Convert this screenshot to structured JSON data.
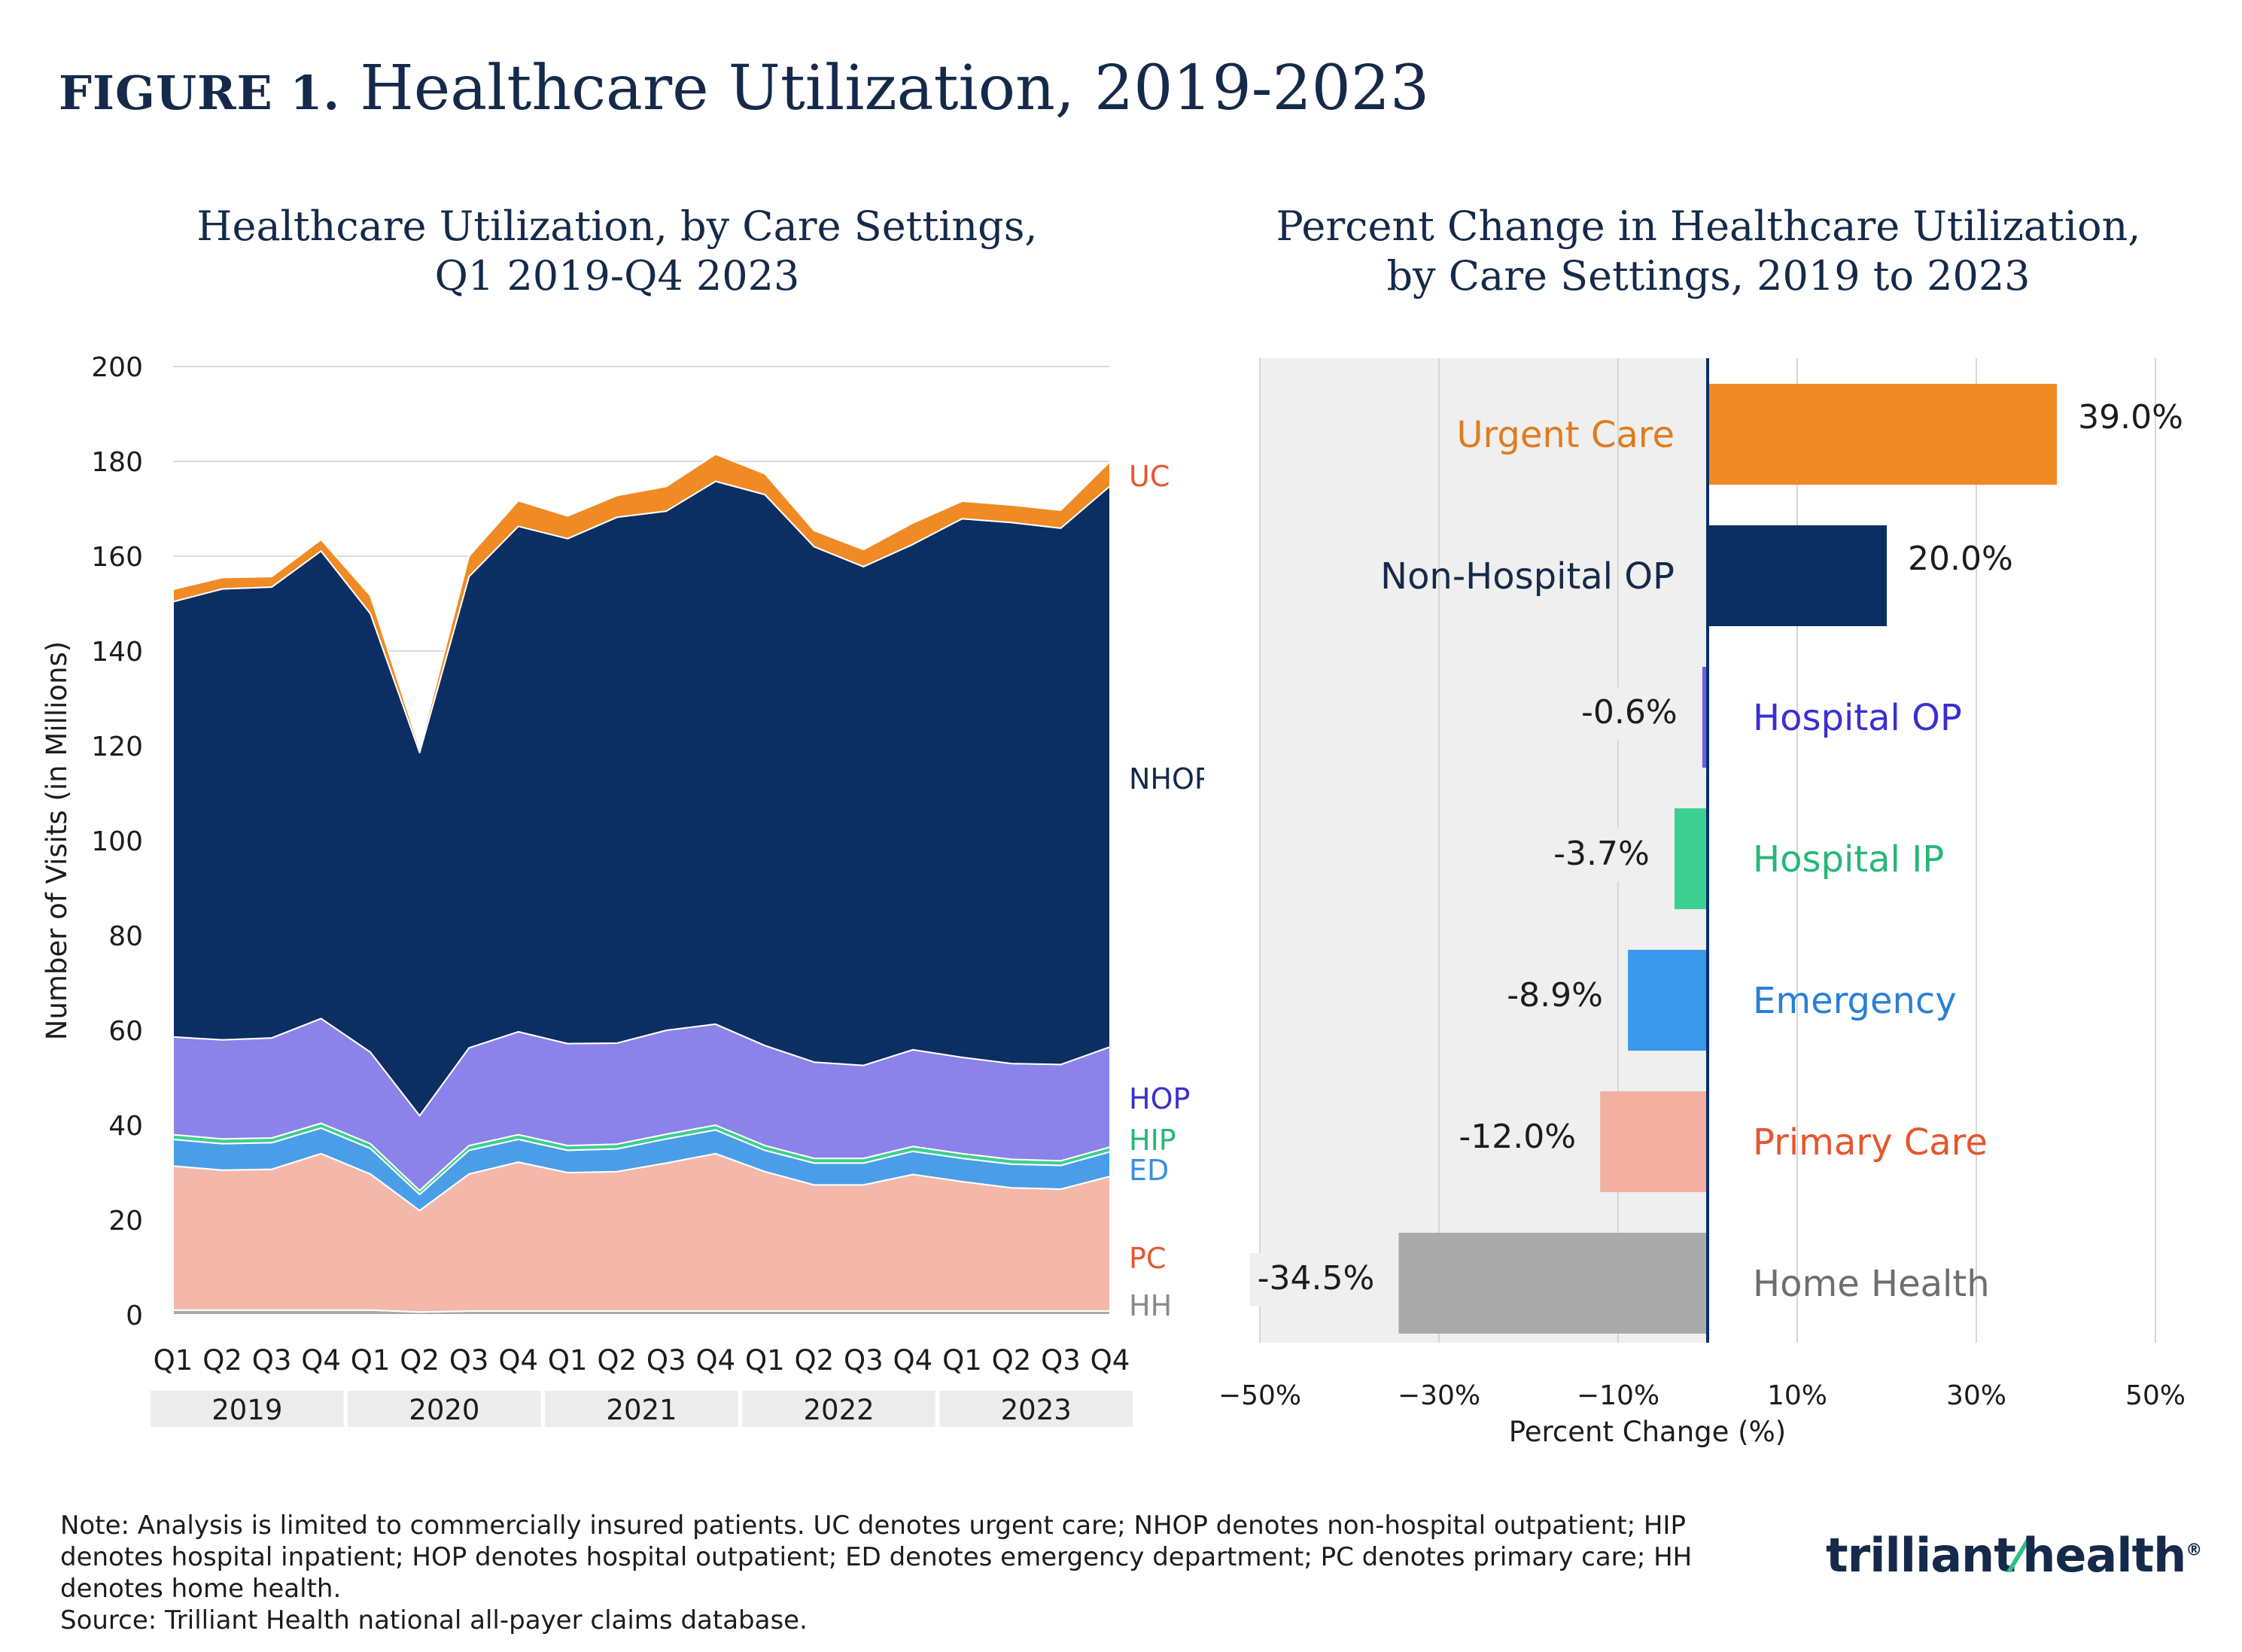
{
  "figure": {
    "label": "FIGURE 1.",
    "title": "Healthcare Utilization, 2019-2023"
  },
  "chart_data": [
    {
      "type": "area",
      "stacked": true,
      "title_lines": [
        "Healthcare Utilization, by Care Settings,",
        "Q1 2019-Q4 2023"
      ],
      "ylabel": "Number of Visits (in Millions)",
      "ylim": [
        0,
        200
      ],
      "yticks": [
        0,
        20,
        40,
        60,
        80,
        100,
        120,
        140,
        160,
        180,
        200
      ],
      "grid": "horizontal",
      "x": [
        "Q1",
        "Q2",
        "Q3",
        "Q4",
        "Q1",
        "Q2",
        "Q3",
        "Q4",
        "Q1",
        "Q2",
        "Q3",
        "Q4",
        "Q1",
        "Q2",
        "Q3",
        "Q4",
        "Q1",
        "Q2",
        "Q3",
        "Q4"
      ],
      "year_groups": [
        "2019",
        "2020",
        "2021",
        "2022",
        "2023"
      ],
      "series": [
        {
          "name": "HH",
          "color": "#a9a9a9",
          "values": [
            1,
            1,
            1,
            1,
            1,
            0.6,
            0.8,
            0.8,
            0.8,
            0.8,
            0.8,
            0.8,
            0.8,
            0.8,
            0.8,
            0.8,
            0.8,
            0.8,
            0.8,
            0.8
          ]
        },
        {
          "name": "PC",
          "color": "#f3b8aa",
          "values": [
            30.4,
            29.5,
            29.7,
            33,
            28.7,
            21.4,
            28.9,
            31.4,
            29.2,
            29.4,
            31.2,
            33.2,
            29.4,
            26.6,
            26.6,
            28.8,
            27.3,
            26,
            25.7,
            28.4
          ]
        },
        {
          "name": "ED",
          "color": "#4a9ee8",
          "values": [
            5.6,
            5.6,
            5.6,
            5.4,
            5.4,
            3.4,
            5,
            4.8,
            4.7,
            4.8,
            5.1,
            5,
            4.5,
            4.6,
            4.6,
            4.9,
            4.9,
            5,
            5,
            5.2
          ]
        },
        {
          "name": "HIP",
          "color": "#3ecf92",
          "values": [
            1,
            1,
            1,
            1,
            1,
            0.8,
            1,
            1,
            1,
            1,
            1,
            1,
            1,
            1,
            1,
            1,
            1,
            1,
            1,
            1
          ]
        },
        {
          "name": "HOP",
          "color": "#8b82ea",
          "values": [
            20.6,
            20.9,
            21.1,
            22.1,
            19.3,
            15.8,
            20.6,
            21.7,
            21.5,
            21.3,
            21.9,
            21.3,
            21.1,
            20.3,
            19.6,
            20.4,
            20.3,
            20.2,
            20.3,
            21.1
          ]
        },
        {
          "name": "NHOP",
          "color": "#0b2f63",
          "values": [
            91.8,
            95.1,
            95.1,
            98.6,
            92.5,
            76.6,
            99.4,
            106.6,
            106.5,
            110.9,
            109.5,
            114.5,
            116.2,
            108.7,
            105.2,
            106.6,
            113.6,
            114.1,
            113.1,
            118.3
          ]
        },
        {
          "name": "UC",
          "color": "#f08a24",
          "values": [
            2.6,
            2.4,
            2.2,
            2.4,
            3.8,
            0.9,
            4.3,
            5.4,
            4.8,
            4.6,
            5.2,
            5.7,
            4.4,
            3.4,
            3.6,
            4.5,
            3.7,
            3.7,
            3.8,
            5.2
          ]
        }
      ],
      "end_labels": [
        {
          "text": "UC",
          "color": "#e4572e"
        },
        {
          "text": "NHOP",
          "color": "#152a4a"
        },
        {
          "text": "HOP",
          "color": "#3b2fcf"
        },
        {
          "text": "HIP",
          "color": "#27b67a"
        },
        {
          "text": "ED",
          "color": "#3a8fe0"
        },
        {
          "text": "PC",
          "color": "#e4572e"
        },
        {
          "text": "HH",
          "color": "#8a8a8a"
        }
      ]
    },
    {
      "type": "bar",
      "orientation": "horizontal",
      "title_lines": [
        "Percent Change in Healthcare Utilization,",
        "by Care Settings, 2019 to 2023"
      ],
      "xlabel": "Percent Change (%)",
      "xlim": [
        -50,
        50
      ],
      "xticks": [
        -50,
        -30,
        -10,
        10,
        30,
        50
      ],
      "xtick_labels": [
        "−50%",
        "−30%",
        "−10%",
        "10%",
        "30%",
        "50%"
      ],
      "grid": "vertical",
      "categories": [
        "Urgent Care",
        "Non-Hospital OP",
        "Hospital OP",
        "Hospital IP",
        "Emergency",
        "Primary Care",
        "Home Health"
      ],
      "values": [
        39.0,
        20.0,
        -0.6,
        -3.7,
        -8.9,
        -12.0,
        -34.5
      ],
      "value_labels": [
        "39.0%",
        "20.0%",
        "-0.6%",
        "-3.7%",
        "-8.9%",
        "-12.0%",
        "-34.5%"
      ],
      "colors": [
        "#f08a24",
        "#0b2f63",
        "#6b5fe0",
        "#3ecf92",
        "#3a98ea",
        "#f3b0a0",
        "#aaaaaa"
      ],
      "label_colors": [
        "#e07b1f",
        "#152a4a",
        "#3b2fcf",
        "#27b67a",
        "#2a7fd4",
        "#e4572e",
        "#6e6e6e"
      ]
    }
  ],
  "note_lines": [
    "Note: Analysis is limited to commercially insured patients. UC denotes urgent care; NHOP denotes non-hospital outpatient; HIP",
    "denotes hospital inpatient; HOP denotes hospital outpatient; ED denotes emergency department; PC denotes primary care; HH",
    "denotes home health.",
    "Source: Trilliant Health national all-payer claims database."
  ],
  "logo": {
    "part1": "trilliant",
    "part2": "health",
    "mark": "®"
  }
}
